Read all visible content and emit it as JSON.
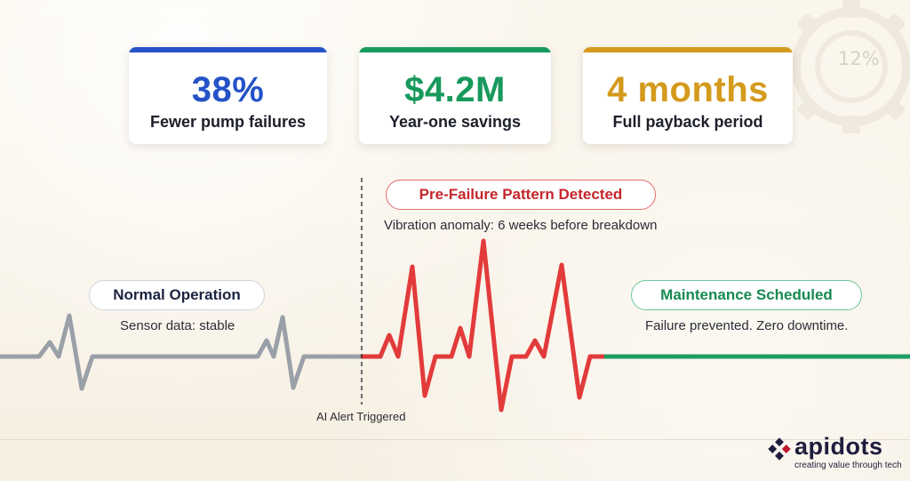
{
  "background": {
    "gear_percent": "12%"
  },
  "stats": [
    {
      "value": "38%",
      "label": "Fewer pump failures",
      "color": "#2552c7"
    },
    {
      "value": "$4.2M",
      "label": "Year-one savings",
      "color": "#179a5c"
    },
    {
      "value": "4 months",
      "label": "Full payback period",
      "color": "#d49a1c"
    }
  ],
  "timeline": {
    "normal": {
      "title": "Normal Operation",
      "subtitle": "Sensor data: stable",
      "line_color": "#9aa0a8"
    },
    "alert": {
      "title": "Pre-Failure Pattern Detected",
      "subtitle": "Vibration anomaly: 6 weeks before breakdown",
      "marker_label": "AI Alert Triggered",
      "line_color": "#e23b3b",
      "text_color": "#c4262b"
    },
    "resolved": {
      "title": "Maintenance Scheduled",
      "subtitle": "Failure prevented. Zero downtime.",
      "line_color": "#1d9e62",
      "text_color": "#168a52"
    }
  },
  "brand": {
    "name": "apidots",
    "tagline": "creating value through tech",
    "color": "#1f1d3d",
    "accent": "#c0182f"
  }
}
